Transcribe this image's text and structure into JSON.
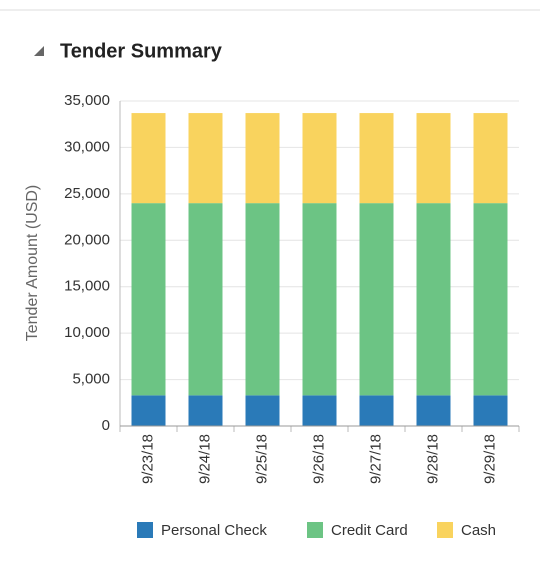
{
  "chart_data": {
    "type": "bar",
    "stacked": true,
    "title": "Tender Summary",
    "y_label": "Tender Amount (USD)",
    "categories": [
      "9/23/18",
      "9/24/18",
      "9/25/18",
      "9/26/18",
      "9/27/18",
      "9/28/18",
      "9/29/18"
    ],
    "series": [
      {
        "name": "Personal Check",
        "color": "#2a7ab8",
        "values": [
          3300,
          3300,
          3300,
          3300,
          3300,
          3300,
          3300
        ]
      },
      {
        "name": "Credit Card",
        "color": "#6cc484",
        "values": [
          20700,
          20700,
          20700,
          20700,
          20700,
          20700,
          20700
        ]
      },
      {
        "name": "Cash",
        "color": "#f9d35e",
        "values": [
          9700,
          9700,
          9700,
          9700,
          9700,
          9700,
          9700
        ]
      }
    ],
    "ylim": [
      0,
      35000
    ],
    "yticks": [
      0,
      {
        "value": 5000,
        "label": "5,000"
      },
      {
        "value": 10000,
        "label": "10,000"
      },
      {
        "value": 15000,
        "label": "15,000"
      },
      {
        "value": 20000,
        "label": "20,000"
      },
      {
        "value": 25000,
        "label": "25,000"
      },
      {
        "value": 30000,
        "label": "30,000"
      },
      {
        "value": 35000,
        "label": "35,000"
      }
    ],
    "grid": true,
    "legend": "bottom"
  }
}
